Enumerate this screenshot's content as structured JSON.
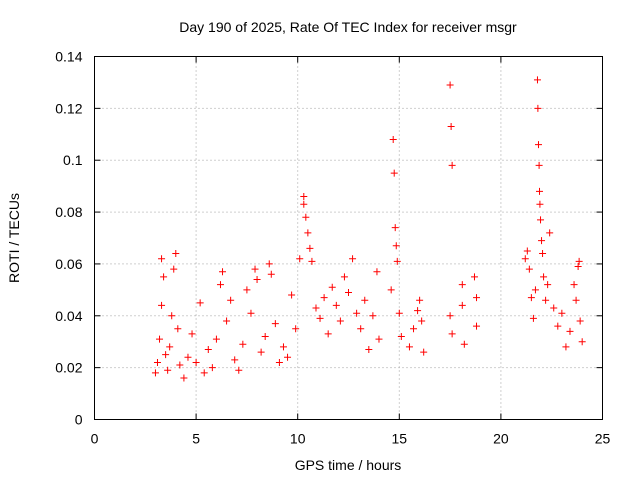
{
  "chart_data": {
    "type": "scatter",
    "title": "Day 190 of 2025, Rate Of TEC Index for receiver msgr",
    "xlabel": "GPS time / hours",
    "ylabel": "ROTI / TECUs",
    "xlim": [
      0,
      25
    ],
    "ylim": [
      0,
      0.14
    ],
    "xticks": [
      0,
      5,
      10,
      15,
      20,
      25
    ],
    "xtick_labels": [
      "0",
      "5",
      "10",
      "15",
      "20",
      "25"
    ],
    "yticks": [
      0,
      0.02,
      0.04,
      0.06,
      0.08,
      0.1,
      0.12,
      0.14
    ],
    "ytick_labels": [
      "0",
      "0.02",
      "0.04",
      "0.06",
      "0.08",
      "0.1",
      "0.12",
      "0.14"
    ],
    "grid": true,
    "marker": "+",
    "color": "#ff0000",
    "series": [
      {
        "points": [
          [
            3.0,
            0.018
          ],
          [
            3.1,
            0.022
          ],
          [
            3.2,
            0.031
          ],
          [
            3.3,
            0.044
          ],
          [
            3.3,
            0.062
          ],
          [
            3.4,
            0.055
          ],
          [
            3.5,
            0.025
          ],
          [
            3.6,
            0.019
          ],
          [
            3.7,
            0.028
          ],
          [
            3.8,
            0.04
          ],
          [
            3.9,
            0.058
          ],
          [
            4.0,
            0.064
          ],
          [
            4.1,
            0.035
          ],
          [
            4.2,
            0.021
          ],
          [
            4.4,
            0.016
          ],
          [
            4.6,
            0.024
          ],
          [
            4.8,
            0.033
          ],
          [
            5.0,
            0.022
          ],
          [
            5.2,
            0.045
          ],
          [
            5.4,
            0.018
          ],
          [
            5.6,
            0.027
          ],
          [
            5.8,
            0.02
          ],
          [
            6.0,
            0.031
          ],
          [
            6.2,
            0.052
          ],
          [
            6.3,
            0.057
          ],
          [
            6.5,
            0.038
          ],
          [
            6.7,
            0.046
          ],
          [
            6.9,
            0.023
          ],
          [
            7.1,
            0.019
          ],
          [
            7.3,
            0.029
          ],
          [
            7.5,
            0.05
          ],
          [
            7.7,
            0.041
          ],
          [
            7.9,
            0.058
          ],
          [
            8.0,
            0.054
          ],
          [
            8.2,
            0.026
          ],
          [
            8.4,
            0.032
          ],
          [
            8.6,
            0.06
          ],
          [
            8.7,
            0.056
          ],
          [
            8.9,
            0.037
          ],
          [
            9.1,
            0.022
          ],
          [
            9.3,
            0.028
          ],
          [
            9.5,
            0.024
          ],
          [
            9.7,
            0.048
          ],
          [
            9.9,
            0.035
          ],
          [
            10.1,
            0.062
          ],
          [
            10.3,
            0.086
          ],
          [
            10.3,
            0.083
          ],
          [
            10.4,
            0.078
          ],
          [
            10.5,
            0.072
          ],
          [
            10.6,
            0.066
          ],
          [
            10.7,
            0.061
          ],
          [
            10.9,
            0.043
          ],
          [
            11.1,
            0.039
          ],
          [
            11.3,
            0.047
          ],
          [
            11.5,
            0.033
          ],
          [
            11.7,
            0.051
          ],
          [
            11.9,
            0.044
          ],
          [
            12.1,
            0.038
          ],
          [
            12.3,
            0.055
          ],
          [
            12.5,
            0.049
          ],
          [
            12.7,
            0.062
          ],
          [
            12.9,
            0.041
          ],
          [
            13.1,
            0.035
          ],
          [
            13.3,
            0.046
          ],
          [
            13.5,
            0.027
          ],
          [
            13.7,
            0.04
          ],
          [
            13.9,
            0.057
          ],
          [
            14.0,
            0.031
          ],
          [
            14.6,
            0.05
          ],
          [
            14.7,
            0.108
          ],
          [
            14.75,
            0.095
          ],
          [
            14.8,
            0.074
          ],
          [
            14.85,
            0.067
          ],
          [
            14.9,
            0.061
          ],
          [
            15.0,
            0.041
          ],
          [
            15.1,
            0.032
          ],
          [
            15.5,
            0.028
          ],
          [
            15.7,
            0.035
          ],
          [
            15.9,
            0.042
          ],
          [
            16.0,
            0.046
          ],
          [
            16.1,
            0.038
          ],
          [
            16.2,
            0.026
          ],
          [
            17.5,
            0.129
          ],
          [
            17.55,
            0.113
          ],
          [
            17.6,
            0.098
          ],
          [
            17.5,
            0.04
          ],
          [
            17.6,
            0.033
          ],
          [
            18.1,
            0.052
          ],
          [
            18.1,
            0.044
          ],
          [
            18.2,
            0.029
          ],
          [
            18.7,
            0.055
          ],
          [
            18.8,
            0.047
          ],
          [
            18.8,
            0.036
          ],
          [
            21.2,
            0.062
          ],
          [
            21.3,
            0.065
          ],
          [
            21.4,
            0.058
          ],
          [
            21.5,
            0.047
          ],
          [
            21.6,
            0.039
          ],
          [
            21.7,
            0.05
          ],
          [
            21.8,
            0.131
          ],
          [
            21.82,
            0.12
          ],
          [
            21.85,
            0.106
          ],
          [
            21.88,
            0.098
          ],
          [
            21.9,
            0.088
          ],
          [
            21.92,
            0.083
          ],
          [
            21.95,
            0.077
          ],
          [
            22.0,
            0.069
          ],
          [
            22.05,
            0.064
          ],
          [
            22.1,
            0.055
          ],
          [
            22.2,
            0.046
          ],
          [
            22.3,
            0.052
          ],
          [
            22.4,
            0.072
          ],
          [
            22.6,
            0.043
          ],
          [
            22.8,
            0.036
          ],
          [
            23.0,
            0.041
          ],
          [
            23.2,
            0.028
          ],
          [
            23.4,
            0.034
          ],
          [
            23.6,
            0.052
          ],
          [
            23.7,
            0.046
          ],
          [
            23.8,
            0.059
          ],
          [
            23.85,
            0.061
          ],
          [
            23.9,
            0.038
          ],
          [
            24.0,
            0.03
          ]
        ]
      }
    ]
  }
}
